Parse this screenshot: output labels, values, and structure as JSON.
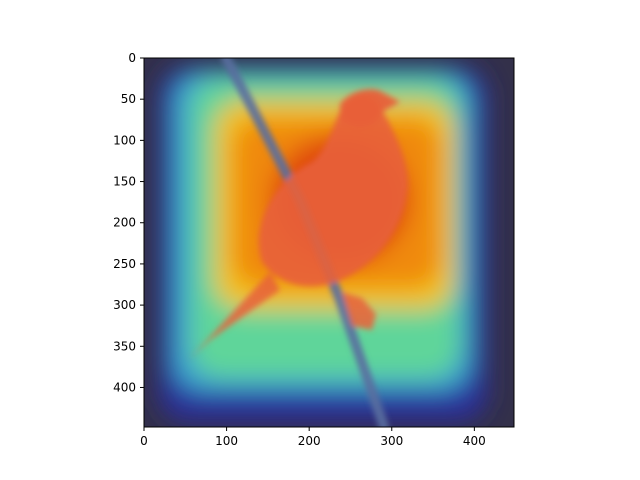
{
  "figure": {
    "subject": "bird",
    "overlay": "attention heatmap (jet colormap)",
    "colors": {
      "background_dark": "#33304a",
      "cold": "#2a2f9a",
      "cool": "#3aa0d0",
      "mid": "#5fd59a",
      "warm": "#f2c21a",
      "hot": "#f08a0a",
      "hottest": "#e04a10",
      "bird_body": "#e8603a",
      "branch": "#5a6ea0"
    }
  },
  "chart_data": {
    "type": "heatmap",
    "x_ticks": [
      "0",
      "100",
      "200",
      "300",
      "400"
    ],
    "y_ticks": [
      "0",
      "50",
      "100",
      "150",
      "200",
      "250",
      "300",
      "350",
      "400"
    ],
    "xlim": [
      0,
      448
    ],
    "ylim": [
      448,
      0
    ],
    "x_tick_values": [
      0,
      100,
      200,
      300,
      400
    ],
    "y_tick_values": [
      0,
      50,
      100,
      150,
      200,
      250,
      300,
      350,
      400
    ]
  }
}
